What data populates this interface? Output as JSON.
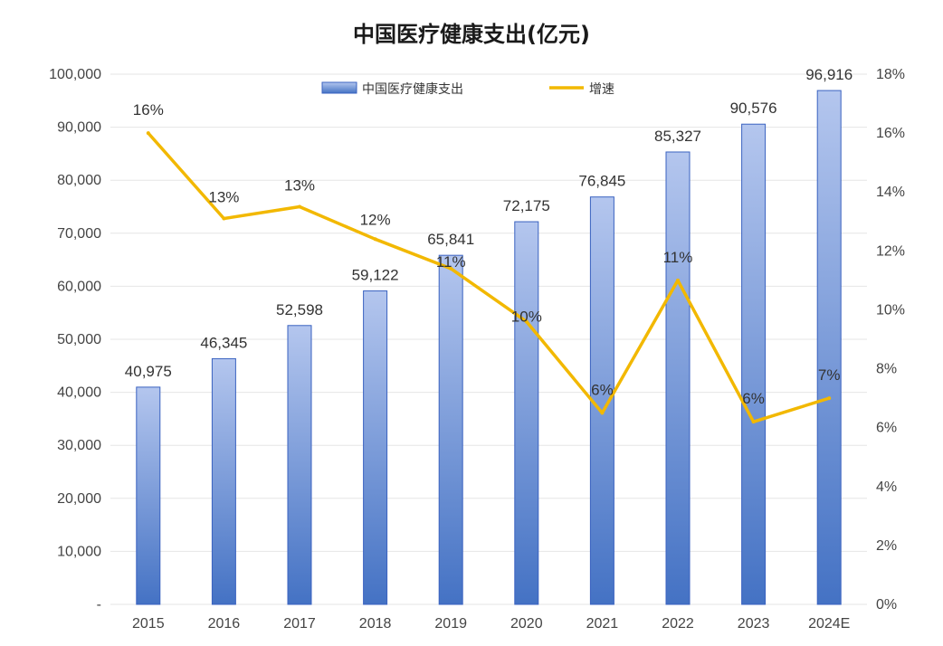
{
  "chart_data": {
    "type": "bar+line",
    "title": "中国医疗健康支出(亿元)",
    "categories": [
      "2015",
      "2016",
      "2017",
      "2018",
      "2019",
      "2020",
      "2021",
      "2022",
      "2023",
      "2024E"
    ],
    "series": [
      {
        "name": "中国医疗健康支出",
        "type": "bar",
        "axis": "left",
        "values": [
          40975,
          46345,
          52598,
          59122,
          65841,
          72175,
          76845,
          85327,
          90576,
          96916
        ],
        "labels": [
          "40,975",
          "46,345",
          "52,598",
          "59,122",
          "65,841",
          "72,175",
          "76,845",
          "85,327",
          "90,576",
          "96,916"
        ]
      },
      {
        "name": "增速",
        "type": "line",
        "axis": "right",
        "values": [
          16.0,
          13.1,
          13.5,
          12.4,
          11.4,
          9.6,
          6.5,
          11.0,
          6.2,
          7.0
        ],
        "labels": [
          "16%",
          "13%",
          "13%",
          "12%",
          "11%",
          "10%",
          "6%",
          "11%",
          "6%",
          "7%"
        ]
      }
    ],
    "y_left": {
      "range": [
        0,
        100000
      ],
      "ticks": [
        0,
        10000,
        20000,
        30000,
        40000,
        50000,
        60000,
        70000,
        80000,
        90000,
        100000
      ],
      "tick_labels": [
        "-",
        "10,000",
        "20,000",
        "30,000",
        "40,000",
        "50,000",
        "60,000",
        "70,000",
        "80,000",
        "90,000",
        "100,000"
      ]
    },
    "y_right": {
      "range": [
        0,
        18
      ],
      "ticks": [
        0,
        2,
        4,
        6,
        8,
        10,
        12,
        14,
        16,
        18
      ],
      "tick_labels": [
        "0%",
        "2%",
        "4%",
        "6%",
        "8%",
        "10%",
        "12%",
        "14%",
        "16%",
        "18%"
      ]
    },
    "grid": true,
    "legend_position": "top-center",
    "colors": {
      "bar_top": "#b4c6ee",
      "bar_bottom": "#4472c4",
      "bar_border": "#3a62c0",
      "line": "#f2b800",
      "grid": "#e6e6e6"
    }
  }
}
